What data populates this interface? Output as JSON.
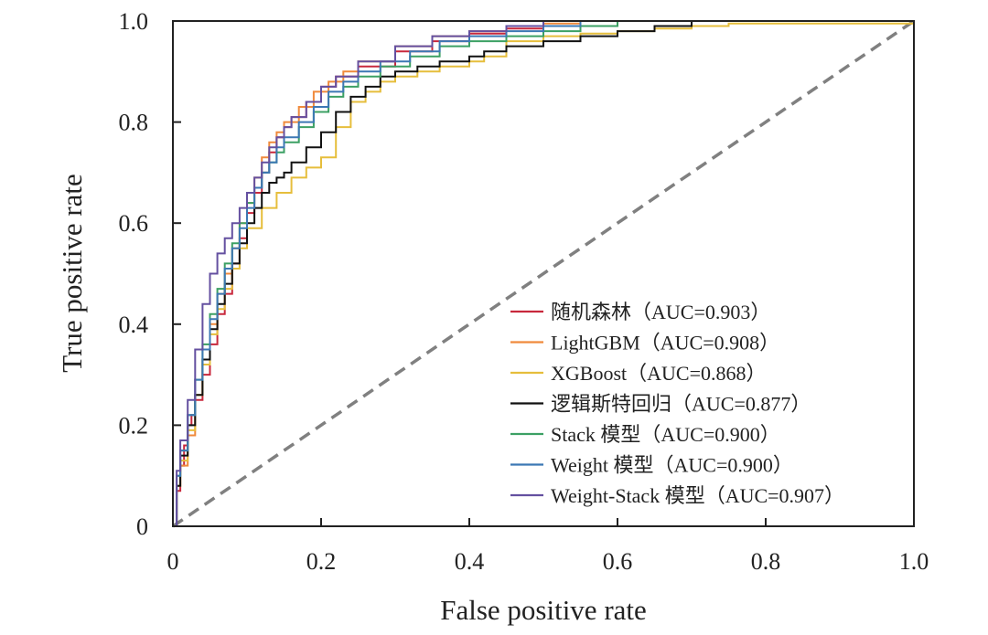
{
  "chart_data": {
    "type": "line",
    "title": "",
    "xlabel": "False positive rate",
    "ylabel": "True positive rate",
    "xlim": [
      0,
      1
    ],
    "ylim": [
      0,
      1
    ],
    "x_ticks": [
      "0",
      "0.2",
      "0.4",
      "0.6",
      "0.8",
      "1.0"
    ],
    "y_ticks": [
      "0",
      "0.2",
      "0.4",
      "0.6",
      "0.8",
      "1.0"
    ],
    "grid": false,
    "legend_position": "bottom-right",
    "reference_line": {
      "name": "random-guess",
      "points": [
        [
          0,
          0
        ],
        [
          1,
          1
        ]
      ],
      "style": "dashed",
      "color": "#808080"
    },
    "series": [
      {
        "name": "随机森林（AUC=0.903）",
        "color": "#c8283c",
        "points": [
          [
            0,
            0
          ],
          [
            0.005,
            0.07
          ],
          [
            0.01,
            0.12
          ],
          [
            0.015,
            0.16
          ],
          [
            0.02,
            0.2
          ],
          [
            0.025,
            0.22
          ],
          [
            0.03,
            0.25
          ],
          [
            0.04,
            0.3
          ],
          [
            0.05,
            0.36
          ],
          [
            0.06,
            0.42
          ],
          [
            0.07,
            0.46
          ],
          [
            0.08,
            0.52
          ],
          [
            0.09,
            0.57
          ],
          [
            0.1,
            0.62
          ],
          [
            0.11,
            0.66
          ],
          [
            0.12,
            0.7
          ],
          [
            0.13,
            0.74
          ],
          [
            0.14,
            0.77
          ],
          [
            0.15,
            0.79
          ],
          [
            0.16,
            0.81
          ],
          [
            0.18,
            0.84
          ],
          [
            0.2,
            0.87
          ],
          [
            0.22,
            0.89
          ],
          [
            0.25,
            0.91
          ],
          [
            0.3,
            0.94
          ],
          [
            0.35,
            0.96
          ],
          [
            0.4,
            0.975
          ],
          [
            0.45,
            0.985
          ],
          [
            0.5,
            0.99
          ],
          [
            0.6,
            1.0
          ],
          [
            1,
            1
          ]
        ]
      },
      {
        "name": "LightGBM（AUC=0.908）",
        "color": "#f08a3c",
        "points": [
          [
            0,
            0
          ],
          [
            0.005,
            0.08
          ],
          [
            0.01,
            0.12
          ],
          [
            0.02,
            0.18
          ],
          [
            0.03,
            0.26
          ],
          [
            0.04,
            0.33
          ],
          [
            0.05,
            0.4
          ],
          [
            0.06,
            0.46
          ],
          [
            0.07,
            0.5
          ],
          [
            0.08,
            0.55
          ],
          [
            0.09,
            0.6
          ],
          [
            0.1,
            0.64
          ],
          [
            0.11,
            0.69
          ],
          [
            0.12,
            0.73
          ],
          [
            0.13,
            0.76
          ],
          [
            0.14,
            0.78
          ],
          [
            0.15,
            0.8
          ],
          [
            0.17,
            0.83
          ],
          [
            0.19,
            0.86
          ],
          [
            0.21,
            0.88
          ],
          [
            0.23,
            0.9
          ],
          [
            0.25,
            0.92
          ],
          [
            0.3,
            0.95
          ],
          [
            0.35,
            0.97
          ],
          [
            0.4,
            0.98
          ],
          [
            0.45,
            0.99
          ],
          [
            0.5,
            0.995
          ],
          [
            0.55,
            1.0
          ],
          [
            1,
            1
          ]
        ]
      },
      {
        "name": "XGBoost（AUC=0.868）",
        "color": "#e6be3c",
        "points": [
          [
            0,
            0
          ],
          [
            0.005,
            0.08
          ],
          [
            0.01,
            0.13
          ],
          [
            0.02,
            0.19
          ],
          [
            0.03,
            0.26
          ],
          [
            0.04,
            0.32
          ],
          [
            0.05,
            0.38
          ],
          [
            0.06,
            0.43
          ],
          [
            0.07,
            0.47
          ],
          [
            0.08,
            0.51
          ],
          [
            0.09,
            0.55
          ],
          [
            0.1,
            0.59
          ],
          [
            0.12,
            0.63
          ],
          [
            0.14,
            0.66
          ],
          [
            0.16,
            0.69
          ],
          [
            0.18,
            0.71
          ],
          [
            0.2,
            0.73
          ],
          [
            0.22,
            0.79
          ],
          [
            0.24,
            0.84
          ],
          [
            0.26,
            0.86
          ],
          [
            0.28,
            0.88
          ],
          [
            0.3,
            0.89
          ],
          [
            0.33,
            0.9
          ],
          [
            0.36,
            0.91
          ],
          [
            0.4,
            0.92
          ],
          [
            0.42,
            0.93
          ],
          [
            0.45,
            0.96
          ],
          [
            0.5,
            0.97
          ],
          [
            0.55,
            0.975
          ],
          [
            0.6,
            0.98
          ],
          [
            0.65,
            0.985
          ],
          [
            0.7,
            0.99
          ],
          [
            0.75,
            0.995
          ],
          [
            1,
            1
          ]
        ]
      },
      {
        "name": "逻辑斯特回归（AUC=0.877）",
        "color": "#111111",
        "points": [
          [
            0,
            0
          ],
          [
            0.005,
            0.08
          ],
          [
            0.01,
            0.14
          ],
          [
            0.02,
            0.2
          ],
          [
            0.03,
            0.26
          ],
          [
            0.04,
            0.33
          ],
          [
            0.05,
            0.39
          ],
          [
            0.06,
            0.44
          ],
          [
            0.07,
            0.48
          ],
          [
            0.08,
            0.52
          ],
          [
            0.09,
            0.56
          ],
          [
            0.1,
            0.6
          ],
          [
            0.11,
            0.63
          ],
          [
            0.12,
            0.66
          ],
          [
            0.13,
            0.68
          ],
          [
            0.14,
            0.69
          ],
          [
            0.15,
            0.7
          ],
          [
            0.16,
            0.72
          ],
          [
            0.18,
            0.75
          ],
          [
            0.2,
            0.78
          ],
          [
            0.22,
            0.82
          ],
          [
            0.24,
            0.85
          ],
          [
            0.26,
            0.87
          ],
          [
            0.28,
            0.89
          ],
          [
            0.3,
            0.9
          ],
          [
            0.33,
            0.91
          ],
          [
            0.36,
            0.92
          ],
          [
            0.4,
            0.93
          ],
          [
            0.42,
            0.94
          ],
          [
            0.45,
            0.95
          ],
          [
            0.5,
            0.96
          ],
          [
            0.55,
            0.97
          ],
          [
            0.6,
            0.98
          ],
          [
            0.65,
            0.99
          ],
          [
            0.7,
            1.0
          ],
          [
            1,
            1
          ]
        ]
      },
      {
        "name": "Stack 模型（AUC=0.900）",
        "color": "#3ca064",
        "points": [
          [
            0,
            0
          ],
          [
            0.005,
            0.1
          ],
          [
            0.01,
            0.15
          ],
          [
            0.02,
            0.22
          ],
          [
            0.03,
            0.29
          ],
          [
            0.04,
            0.36
          ],
          [
            0.05,
            0.42
          ],
          [
            0.06,
            0.47
          ],
          [
            0.07,
            0.52
          ],
          [
            0.08,
            0.56
          ],
          [
            0.09,
            0.6
          ],
          [
            0.1,
            0.64
          ],
          [
            0.11,
            0.67
          ],
          [
            0.12,
            0.7
          ],
          [
            0.13,
            0.72
          ],
          [
            0.14,
            0.74
          ],
          [
            0.15,
            0.76
          ],
          [
            0.17,
            0.79
          ],
          [
            0.19,
            0.82
          ],
          [
            0.21,
            0.85
          ],
          [
            0.23,
            0.87
          ],
          [
            0.25,
            0.89
          ],
          [
            0.28,
            0.91
          ],
          [
            0.32,
            0.93
          ],
          [
            0.36,
            0.95
          ],
          [
            0.4,
            0.96
          ],
          [
            0.45,
            0.97
          ],
          [
            0.5,
            0.98
          ],
          [
            0.55,
            0.99
          ],
          [
            0.6,
            1.0
          ],
          [
            1,
            1
          ]
        ]
      },
      {
        "name": "Weight 模型（AUC=0.900）",
        "color": "#3c78b4",
        "points": [
          [
            0,
            0
          ],
          [
            0.005,
            0.1
          ],
          [
            0.01,
            0.15
          ],
          [
            0.02,
            0.22
          ],
          [
            0.03,
            0.29
          ],
          [
            0.04,
            0.35
          ],
          [
            0.05,
            0.41
          ],
          [
            0.06,
            0.46
          ],
          [
            0.07,
            0.51
          ],
          [
            0.08,
            0.55
          ],
          [
            0.09,
            0.59
          ],
          [
            0.1,
            0.63
          ],
          [
            0.11,
            0.67
          ],
          [
            0.12,
            0.7
          ],
          [
            0.13,
            0.72
          ],
          [
            0.14,
            0.75
          ],
          [
            0.15,
            0.77
          ],
          [
            0.17,
            0.8
          ],
          [
            0.19,
            0.83
          ],
          [
            0.21,
            0.86
          ],
          [
            0.23,
            0.88
          ],
          [
            0.25,
            0.9
          ],
          [
            0.28,
            0.92
          ],
          [
            0.32,
            0.94
          ],
          [
            0.36,
            0.96
          ],
          [
            0.4,
            0.97
          ],
          [
            0.45,
            0.98
          ],
          [
            0.5,
            0.99
          ],
          [
            0.55,
            1.0
          ],
          [
            1,
            1
          ]
        ]
      },
      {
        "name": "Weight-Stack 模型（AUC=0.907）",
        "color": "#6450a0",
        "points": [
          [
            0,
            0
          ],
          [
            0.005,
            0.11
          ],
          [
            0.01,
            0.17
          ],
          [
            0.02,
            0.25
          ],
          [
            0.03,
            0.35
          ],
          [
            0.04,
            0.44
          ],
          [
            0.05,
            0.5
          ],
          [
            0.06,
            0.54
          ],
          [
            0.07,
            0.57
          ],
          [
            0.08,
            0.6
          ],
          [
            0.09,
            0.63
          ],
          [
            0.1,
            0.66
          ],
          [
            0.11,
            0.69
          ],
          [
            0.12,
            0.72
          ],
          [
            0.13,
            0.75
          ],
          [
            0.14,
            0.77
          ],
          [
            0.15,
            0.79
          ],
          [
            0.16,
            0.81
          ],
          [
            0.18,
            0.84
          ],
          [
            0.2,
            0.87
          ],
          [
            0.22,
            0.89
          ],
          [
            0.25,
            0.92
          ],
          [
            0.3,
            0.95
          ],
          [
            0.35,
            0.97
          ],
          [
            0.4,
            0.98
          ],
          [
            0.45,
            0.99
          ],
          [
            0.5,
            1.0
          ],
          [
            1,
            1
          ]
        ]
      }
    ]
  }
}
